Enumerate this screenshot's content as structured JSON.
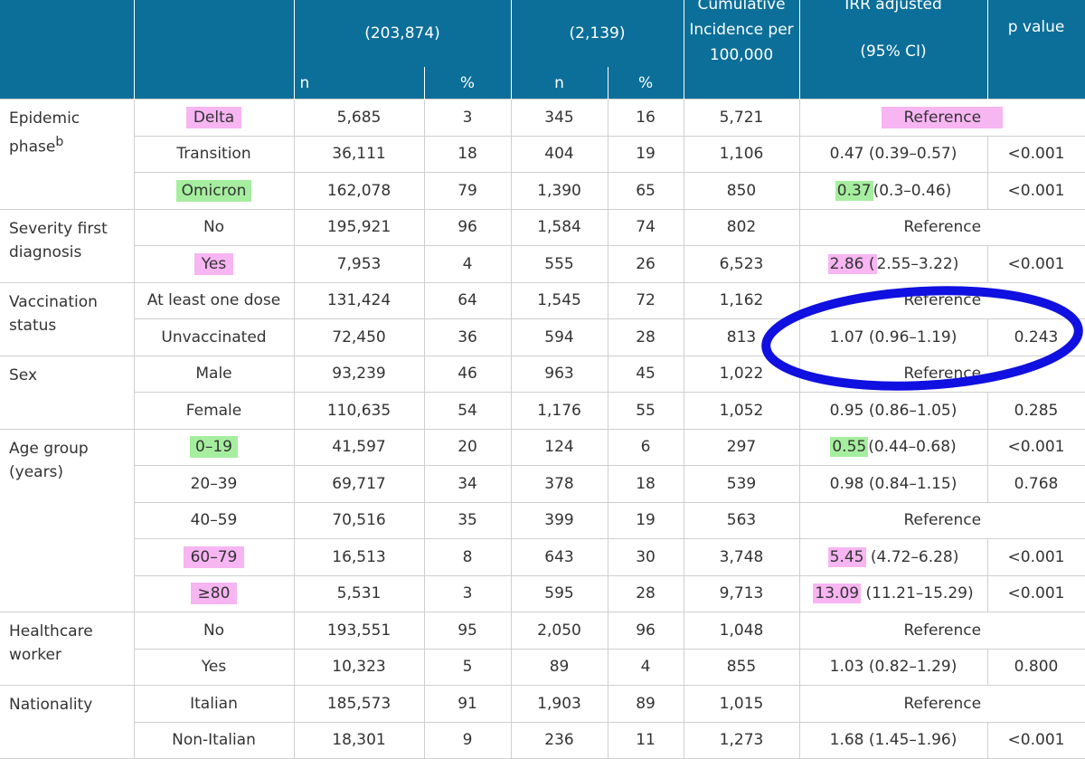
{
  "header": {
    "group1_count": "(203,874)",
    "group2_count": "(2,139)",
    "cum_incidence": "Cumulative Incidence per 100,000",
    "irr_title": "IRR adjusted",
    "irr_ci": "(95% CI)",
    "pvalue": "p value",
    "n1": "n",
    "pct1": "%",
    "n2": "n",
    "pct2": "%"
  },
  "groups": [
    {
      "label": "Epidemic phase",
      "sup": "b",
      "rows": [
        {
          "cat": "Delta",
          "n1": "5,685",
          "p1": "3",
          "n2": "345",
          "p2": "16",
          "ci": "5,721",
          "irr": "Reference",
          "pv": ""
        },
        {
          "cat": "Transition",
          "n1": "36,111",
          "p1": "18",
          "n2": "404",
          "p2": "19",
          "ci": "1,106",
          "irr": "0.47 (0.39–0.57)",
          "pv": "<0.001"
        },
        {
          "cat": "Omicron",
          "n1": "162,078",
          "p1": "79",
          "n2": "1,390",
          "p2": "65",
          "ci": "850",
          "irr_a": "0.37",
          "irr_b": "(0.3–0.46)",
          "pv": "<0.001"
        }
      ]
    },
    {
      "label": "Severity first diagnosis",
      "rows": [
        {
          "cat": "No",
          "n1": "195,921",
          "p1": "96",
          "n2": "1,584",
          "p2": "74",
          "ci": "802",
          "irr": "Reference",
          "pv": ""
        },
        {
          "cat": "Yes",
          "n1": "7,953",
          "p1": "4",
          "n2": "555",
          "p2": "26",
          "ci": "6,523",
          "irr_a": "2.86 (",
          "irr_b": "2.55–3.22)",
          "pv": "<0.001"
        }
      ]
    },
    {
      "label": "Vaccination status",
      "rows": [
        {
          "cat": "At least one dose",
          "n1": "131,424",
          "p1": "64",
          "n2": "1,545",
          "p2": "72",
          "ci": "1,162",
          "irr": "Reference",
          "pv": ""
        },
        {
          "cat": "Unvaccinated",
          "n1": "72,450",
          "p1": "36",
          "n2": "594",
          "p2": "28",
          "ci": "813",
          "irr": "1.07 (0.96–1.19)",
          "pv": "0.243"
        }
      ]
    },
    {
      "label": "Sex",
      "rows": [
        {
          "cat": "Male",
          "n1": "93,239",
          "p1": "46",
          "n2": "963",
          "p2": "45",
          "ci": "1,022",
          "irr": "Reference",
          "pv": ""
        },
        {
          "cat": "Female",
          "n1": "110,635",
          "p1": "54",
          "n2": "1,176",
          "p2": "55",
          "ci": "1,052",
          "irr": "0.95 (0.86–1.05)",
          "pv": "0.285"
        }
      ]
    },
    {
      "label": "Age group (years)",
      "rows": [
        {
          "cat": "0–19",
          "n1": "41,597",
          "p1": "20",
          "n2": "124",
          "p2": "6",
          "ci": "297",
          "irr_a": "0.55",
          "irr_b": "(0.44–0.68)",
          "pv": "<0.001"
        },
        {
          "cat": "20–39",
          "n1": "69,717",
          "p1": "34",
          "n2": "378",
          "p2": "18",
          "ci": "539",
          "irr": "0.98 (0.84–1.15)",
          "pv": "0.768"
        },
        {
          "cat": "40–59",
          "n1": "70,516",
          "p1": "35",
          "n2": "399",
          "p2": "19",
          "ci": "563",
          "irr": "Reference",
          "pv": ""
        },
        {
          "cat": "60–79",
          "n1": "16,513",
          "p1": "8",
          "n2": "643",
          "p2": "30",
          "ci": "3,748",
          "irr_a": "5.45",
          "irr_b": " (4.72–6.28)",
          "pv": "<0.001"
        },
        {
          "cat": "≥80",
          "n1": "5,531",
          "p1": "3",
          "n2": "595",
          "p2": "28",
          "ci": "9,713",
          "irr_a": "13.09",
          "irr_b": " (11.21–15.29)",
          "pv": "<0.001"
        }
      ]
    },
    {
      "label": "Healthcare worker",
      "rows": [
        {
          "cat": "No",
          "n1": "193,551",
          "p1": "95",
          "n2": "2,050",
          "p2": "96",
          "ci": "1,048",
          "irr": "Reference",
          "pv": ""
        },
        {
          "cat": "Yes",
          "n1": "10,323",
          "p1": "5",
          "n2": "89",
          "p2": "4",
          "ci": "855",
          "irr": "1.03 (0.82–1.29)",
          "pv": "0.800"
        }
      ]
    },
    {
      "label": "Nationality",
      "rows": [
        {
          "cat": "Italian",
          "n1": "185,573",
          "p1": "91",
          "n2": "1,903",
          "p2": "89",
          "ci": "1,015",
          "irr": "Reference",
          "pv": ""
        },
        {
          "cat": "Non-Italian",
          "n1": "18,301",
          "p1": "9",
          "n2": "236",
          "p2": "11",
          "ci": "1,273",
          "irr": "1.68 (1.45–1.96)",
          "pv": "<0.001"
        }
      ]
    }
  ],
  "colors": {
    "header_bg": "#0b6f99",
    "highlight_pink": "#f7b5f2",
    "highlight_green": "#a6ee9f",
    "annotation_ellipse": "#1010e0"
  }
}
